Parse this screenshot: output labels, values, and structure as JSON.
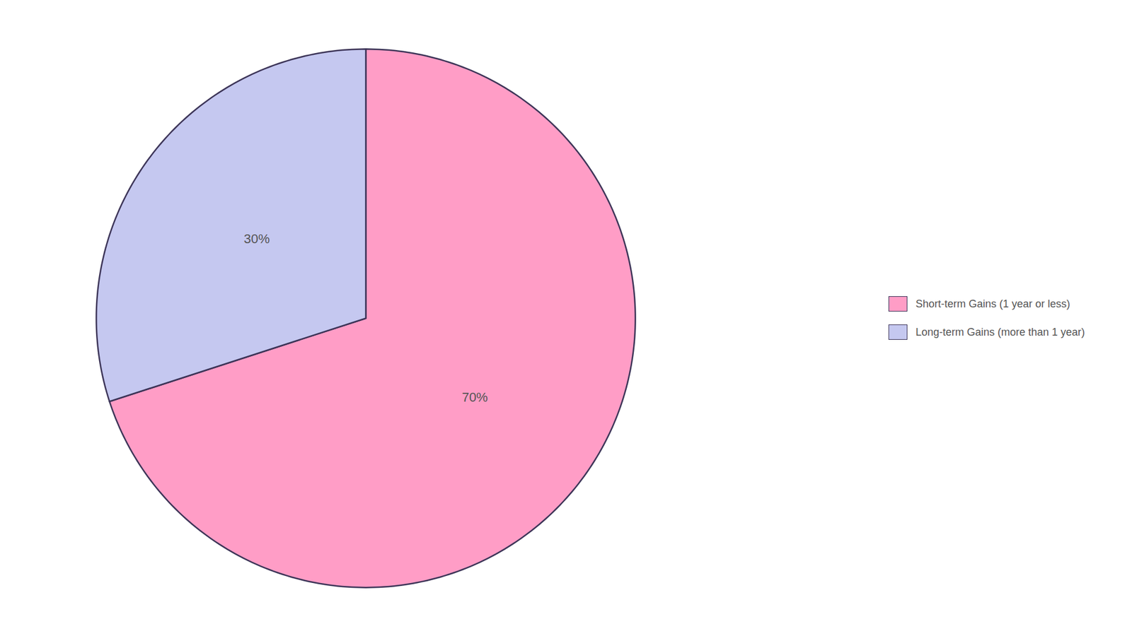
{
  "chart_data": {
    "type": "pie",
    "categories": [
      "Short-term Gains (1 year or less)",
      "Long-term Gains (more than 1 year)"
    ],
    "values": [
      70,
      30
    ],
    "value_labels": [
      "70%",
      "30%"
    ],
    "data_labels": true,
    "colors": [
      "#FF9DC6",
      "#C5C8F0"
    ],
    "legend": "right"
  }
}
